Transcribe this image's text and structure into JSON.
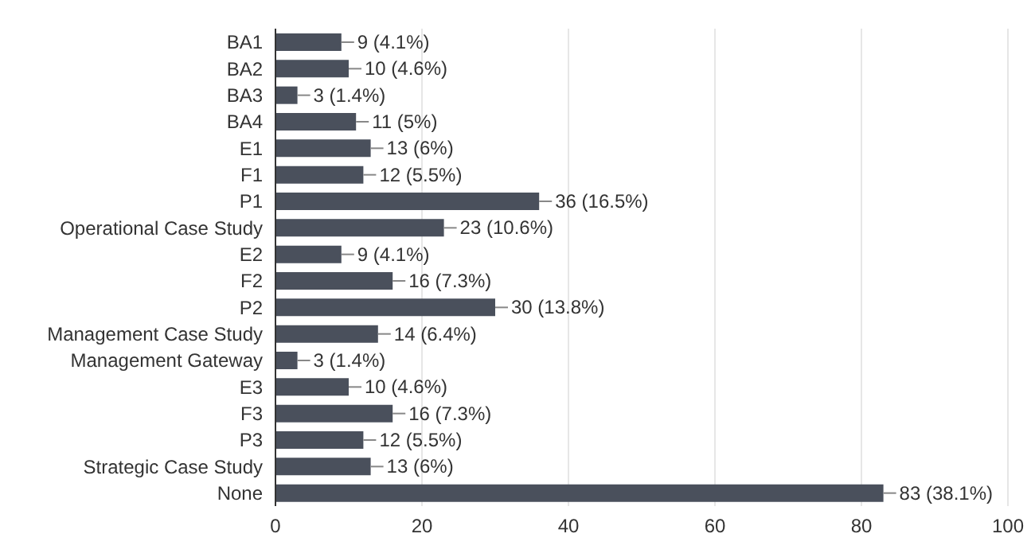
{
  "chart_data": {
    "type": "bar",
    "orientation": "horizontal",
    "categories": [
      "BA1",
      "BA2",
      "BA3",
      "BA4",
      "E1",
      "F1",
      "P1",
      "Operational Case Study",
      "E2",
      "F2",
      "P2",
      "Management Case Study",
      "Management Gateway",
      "E3",
      "F3",
      "P3",
      "Strategic Case Study",
      "None"
    ],
    "values": [
      9,
      10,
      3,
      11,
      13,
      12,
      36,
      23,
      9,
      16,
      30,
      14,
      3,
      10,
      16,
      12,
      13,
      83
    ],
    "value_labels": [
      "9 (4.1%)",
      "10 (4.6%)",
      "3 (1.4%)",
      "11 (5%)",
      "13 (6%)",
      "12 (5.5%)",
      "36 (16.5%)",
      "23 (10.6%)",
      "9 (4.1%)",
      "16 (7.3%)",
      "30 (13.8%)",
      "14 (6.4%)",
      "3 (1.4%)",
      "10 (4.6%)",
      "16 (7.3%)",
      "12 (5.5%)",
      "13 (6%)",
      "83 (38.1%)"
    ],
    "color": "#4a505c",
    "xlim": [
      0,
      100
    ],
    "xticks": [
      0,
      20,
      40,
      60,
      80,
      100
    ],
    "grid": "x"
  }
}
